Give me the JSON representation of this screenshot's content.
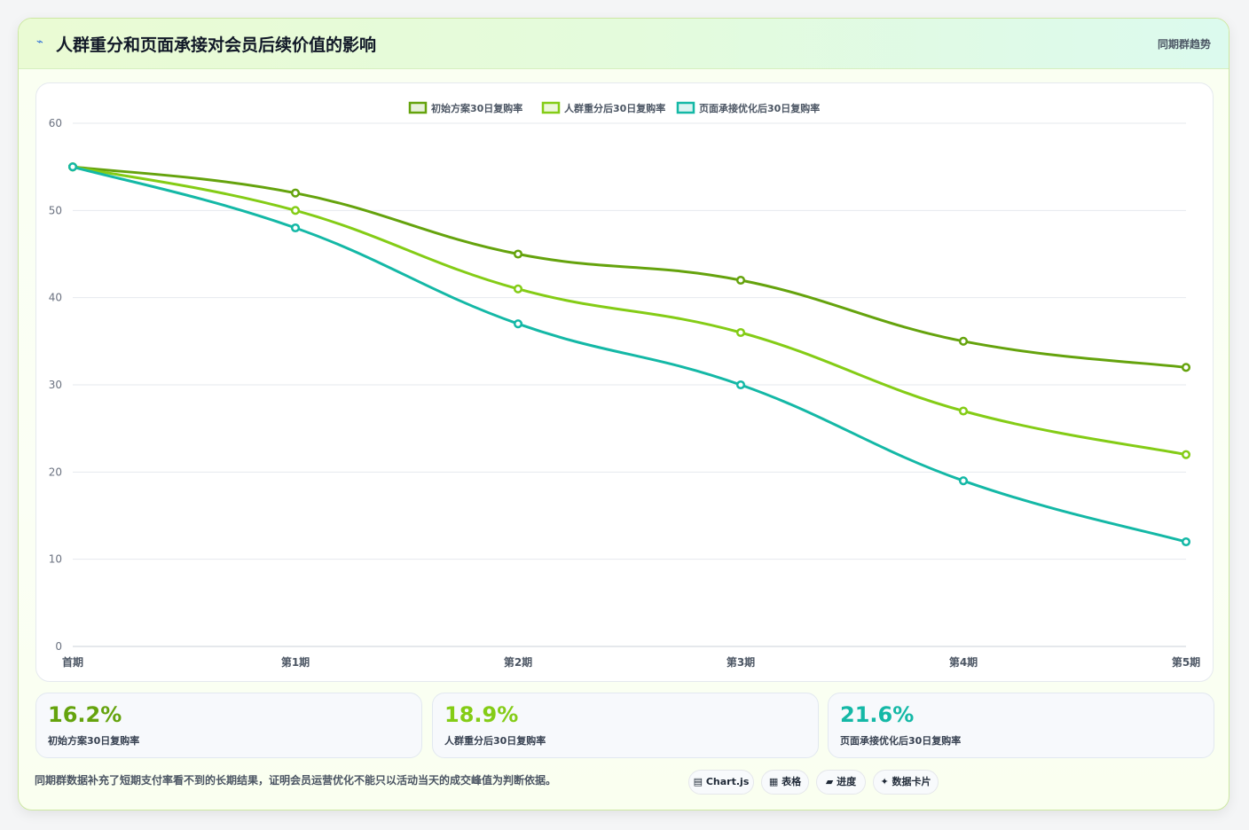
{
  "header": {
    "icon": "lightning-icon",
    "title": "人群重分和页面承接对会员后续价值的影响",
    "badge": "同期群趋势"
  },
  "chart_data": {
    "type": "line",
    "categories": [
      "首期",
      "第1期",
      "第2期",
      "第3期",
      "第4期",
      "第5期"
    ],
    "series": [
      {
        "name": "初始方案30日复购率",
        "color": "#65a30d",
        "values": [
          55,
          52,
          45,
          42,
          35,
          32
        ]
      },
      {
        "name": "人群重分后30日复购率",
        "color": "#84cc16",
        "values": [
          55,
          50,
          41,
          36,
          27,
          22
        ]
      },
      {
        "name": "页面承接优化后30日复购率",
        "color": "#14b8a6",
        "values": [
          55,
          48,
          37,
          30,
          19,
          12
        ]
      }
    ],
    "ylim": [
      0,
      60
    ],
    "yticks": [
      0,
      10,
      20,
      30,
      40,
      50,
      60
    ],
    "grid": true,
    "legend": "top-center"
  },
  "stats": [
    {
      "value": "16.2%",
      "label": "初始方案30日复购率",
      "color": "#65a30d"
    },
    {
      "value": "18.9%",
      "label": "人群重分后30日复购率",
      "color": "#84cc16"
    },
    {
      "value": "21.6%",
      "label": "页面承接优化后30日复购率",
      "color": "#14b8a6"
    }
  ],
  "footer": {
    "text": "同期群数据补充了短期支付率看不到的长期结果，证明会员运营优化不能只以活动当天的成交峰值为判断依据。",
    "chips": [
      {
        "icon": "chart-icon",
        "glyph": "▤",
        "label": "Chart.js"
      },
      {
        "icon": "table-icon",
        "glyph": "▦",
        "label": "表格"
      },
      {
        "icon": "progress-icon",
        "glyph": "▰",
        "label": "进度"
      },
      {
        "icon": "card-icon",
        "glyph": "✦",
        "label": "数据卡片"
      }
    ]
  }
}
